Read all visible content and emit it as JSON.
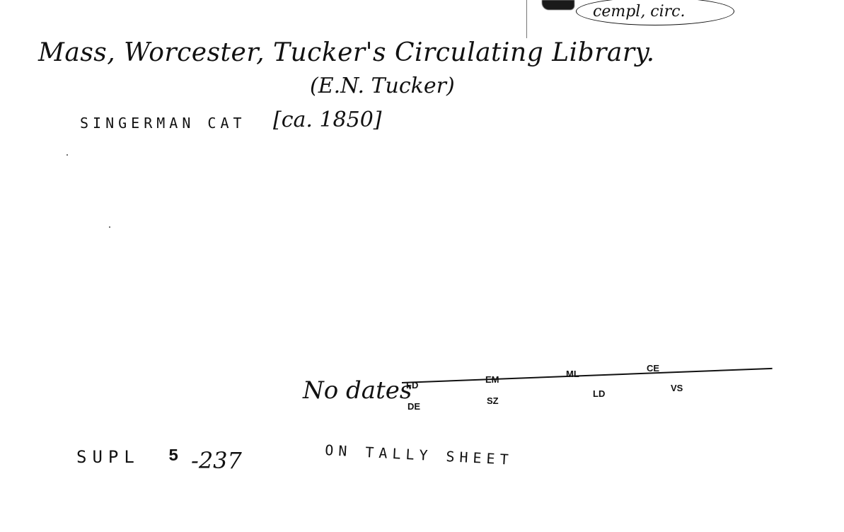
{
  "card": {
    "corner_note": "cempl, circ.",
    "heading_handwritten": "Mass, Worcester, Tucker's Circulating Library.",
    "proprietor_handwritten": "(E.N. Tucker)",
    "catalog_typed": "SINGERMAN CAT",
    "date_handwritten": "[ca. 1850]",
    "no_dates_handwritten": "No dates",
    "codes_above_line": [
      "FD",
      "EM",
      "ML",
      "CE"
    ],
    "codes_below_line": [
      "DE",
      "SZ",
      "LD",
      "VS"
    ],
    "supplement_typed": "SUPL",
    "supplement_number": "5",
    "supplement_handwritten": "-237",
    "tally_typed": "ON TALLY SHEET"
  }
}
